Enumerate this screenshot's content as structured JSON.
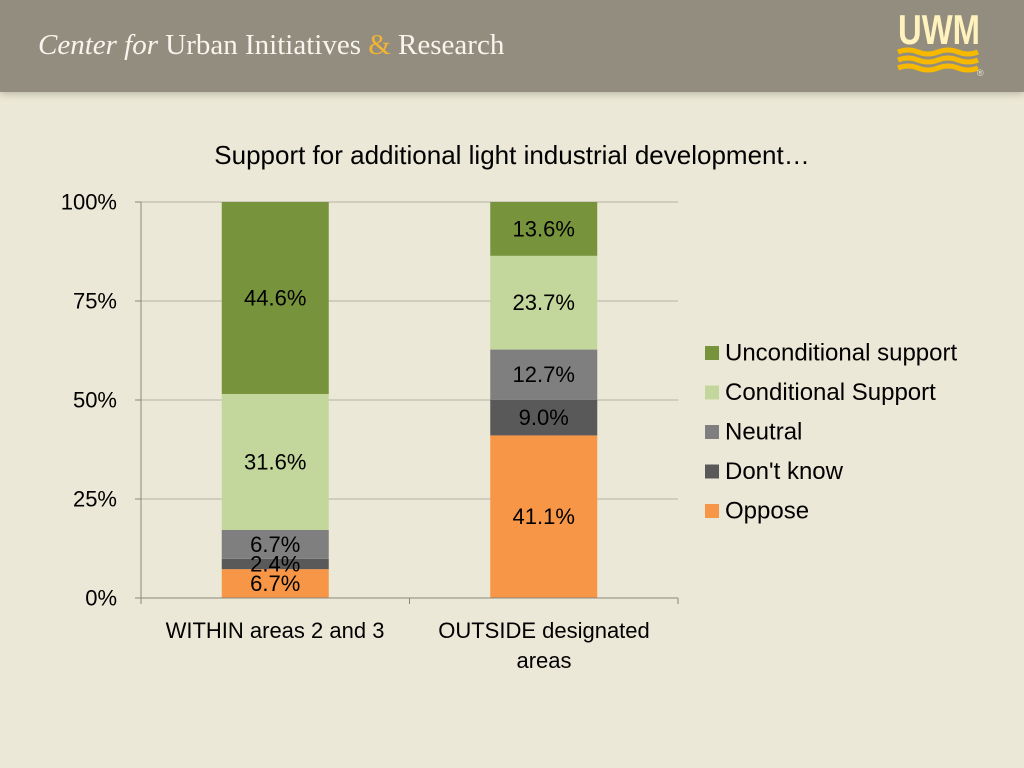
{
  "header": {
    "org_name_prefix": "Center for",
    "org_name_main": "Urban Initiatives",
    "org_name_amp": "&",
    "org_name_suffix": "Research",
    "logo_text": "UWM",
    "logo_registered": "®"
  },
  "colors": {
    "page_background": "#ece8d7",
    "header_background": "#928d7e",
    "header_text": "#f7f5ee",
    "ampersand": "#f2b431",
    "logo_gold": "#f6b900",
    "logo_letters": "#fff2bd",
    "gridline": "#b5b2a6",
    "axis": "#8a877c"
  },
  "chart_data": {
    "type": "bar",
    "stacking": "percent",
    "orientation": "vertical",
    "title": "Support for additional light industrial development…",
    "xlabel": "",
    "ylabel": "",
    "categories": [
      "WITHIN areas 2 and 3",
      "OUTSIDE designated areas"
    ],
    "series": [
      {
        "name": "Oppose",
        "values": [
          6.7,
          41.1
        ],
        "color": "#f79646"
      },
      {
        "name": "Don't know",
        "values": [
          2.4,
          9.0
        ],
        "color": "#595959"
      },
      {
        "name": "Neutral",
        "values": [
          6.7,
          12.7
        ],
        "color": "#7f7f7f"
      },
      {
        "name": "Conditional Support",
        "values": [
          31.6,
          23.7
        ],
        "color": "#c3d69b"
      },
      {
        "name": "Unconditional support",
        "values": [
          44.6,
          13.6
        ],
        "color": "#77933c"
      }
    ],
    "value_unit": "%",
    "data_labels": true,
    "ylim": [
      0,
      100
    ],
    "yticks": [
      0,
      25,
      50,
      75,
      100
    ],
    "ytick_labels": [
      "0%",
      "25%",
      "50%",
      "75%",
      "100%"
    ],
    "grid": true,
    "legend_position": "right"
  }
}
